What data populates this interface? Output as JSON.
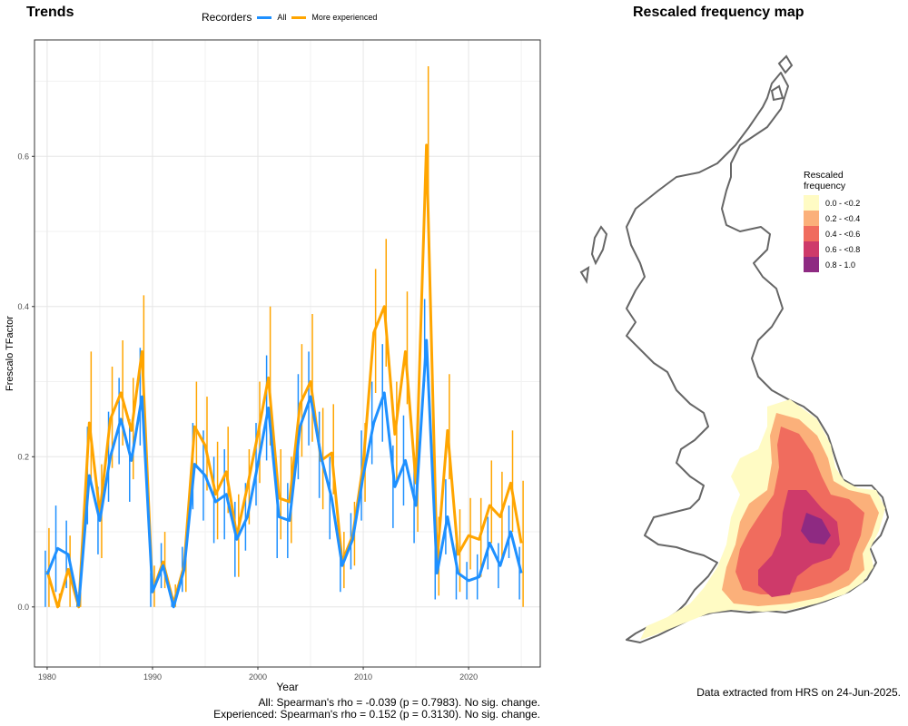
{
  "trends_panel": {
    "title": "Trends",
    "legend_title": "Recorders",
    "legend_entries": [
      {
        "label": "All",
        "color": "#1E90FF"
      },
      {
        "label": "More experienced",
        "color": "#FFA500"
      }
    ],
    "stats_all": "All: Spearman's rho = -0.039 (p = 0.7983). No sig. change.",
    "stats_experienced": "Experienced: Spearman's rho = 0.152 (p = 0.3130). No sig. change."
  },
  "map_panel": {
    "title": "Rescaled frequency map",
    "legend_title_line1": "Rescaled",
    "legend_title_line2": "frequency",
    "legend": [
      {
        "label": "0.0 - <0.2",
        "color": "#FFFBC4"
      },
      {
        "label": "0.2 - <0.4",
        "color": "#FBB07A"
      },
      {
        "label": "0.4 - <0.6",
        "color": "#F06C5E"
      },
      {
        "label": "0.6 - <0.8",
        "color": "#CE3A6A"
      },
      {
        "label": "0.8 - 1.0",
        "color": "#8E2A82"
      }
    ],
    "extract_note": "Data extracted from HRS on 24-Jun-2025."
  },
  "chart_data": {
    "type": "line",
    "xlabel": "Year",
    "ylabel": "Frescalo TFactor",
    "xlim": [
      1978.8,
      2026.8
    ],
    "ylim": [
      -0.08,
      0.755
    ],
    "xticks": [
      1980,
      1990,
      2000,
      2010,
      2020
    ],
    "yticks": [
      0.0,
      0.2,
      0.4,
      0.6
    ],
    "ytick_labels": [
      "0.0",
      "0.2",
      "0.4",
      "0.6"
    ],
    "grid": true,
    "legend_position": "top",
    "x": [
      1980,
      1981,
      1982,
      1983,
      1984,
      1985,
      1986,
      1987,
      1988,
      1989,
      1990,
      1991,
      1992,
      1993,
      1994,
      1995,
      1996,
      1997,
      1998,
      1999,
      2000,
      2001,
      2002,
      2003,
      2004,
      2005,
      2006,
      2007,
      2008,
      2009,
      2010,
      2011,
      2012,
      2013,
      2014,
      2015,
      2016,
      2017,
      2018,
      2019,
      2020,
      2021,
      2022,
      2023,
      2024,
      2025
    ],
    "series": [
      {
        "name": "More experienced",
        "color": "#FFA500",
        "values": [
          0.048,
          0.0,
          0.05,
          0.0,
          0.245,
          0.125,
          0.25,
          0.285,
          0.235,
          0.34,
          0.02,
          0.06,
          0.005,
          0.055,
          0.24,
          0.215,
          0.15,
          0.18,
          0.095,
          0.16,
          0.23,
          0.305,
          0.145,
          0.14,
          0.27,
          0.3,
          0.195,
          0.205,
          0.06,
          0.095,
          0.19,
          0.365,
          0.4,
          0.23,
          0.34,
          0.165,
          0.615,
          0.06,
          0.235,
          0.07,
          0.095,
          0.09,
          0.135,
          0.12,
          0.165,
          0.085
        ],
        "upper": [
          0.105,
          0.018,
          0.095,
          0.05,
          0.34,
          0.19,
          0.32,
          0.355,
          0.305,
          0.415,
          0.055,
          0.1,
          0.03,
          0.1,
          0.3,
          0.28,
          0.22,
          0.24,
          0.15,
          0.21,
          0.3,
          0.4,
          0.21,
          0.2,
          0.35,
          0.39,
          0.265,
          0.27,
          0.1,
          0.14,
          0.245,
          0.45,
          0.49,
          0.3,
          0.42,
          0.24,
          0.72,
          0.12,
          0.31,
          0.13,
          0.145,
          0.145,
          0.195,
          0.18,
          0.235,
          0.168
        ],
        "lower": [
          0.0,
          0.0,
          0.0,
          0.0,
          0.165,
          0.065,
          0.185,
          0.215,
          0.17,
          0.265,
          0.0,
          0.025,
          0.0,
          0.02,
          0.185,
          0.155,
          0.09,
          0.125,
          0.04,
          0.11,
          0.165,
          0.215,
          0.09,
          0.085,
          0.2,
          0.22,
          0.13,
          0.15,
          0.025,
          0.055,
          0.14,
          0.285,
          0.32,
          0.165,
          0.27,
          0.1,
          0.5,
          0.015,
          0.17,
          0.02,
          0.05,
          0.04,
          0.085,
          0.065,
          0.1,
          0.0
        ]
      },
      {
        "name": "All",
        "color": "#1E90FF",
        "values": [
          0.043,
          0.078,
          0.07,
          0.002,
          0.175,
          0.115,
          0.2,
          0.25,
          0.195,
          0.28,
          0.02,
          0.055,
          0.0,
          0.05,
          0.19,
          0.175,
          0.14,
          0.15,
          0.09,
          0.12,
          0.19,
          0.265,
          0.12,
          0.115,
          0.24,
          0.28,
          0.2,
          0.145,
          0.055,
          0.09,
          0.175,
          0.245,
          0.285,
          0.16,
          0.195,
          0.135,
          0.355,
          0.045,
          0.12,
          0.045,
          0.035,
          0.04,
          0.085,
          0.055,
          0.1,
          0.045
        ],
        "upper": [
          0.075,
          0.135,
          0.115,
          0.02,
          0.24,
          0.16,
          0.26,
          0.305,
          0.25,
          0.345,
          0.045,
          0.085,
          0.015,
          0.08,
          0.245,
          0.235,
          0.2,
          0.21,
          0.14,
          0.165,
          0.245,
          0.335,
          0.175,
          0.165,
          0.31,
          0.34,
          0.26,
          0.2,
          0.09,
          0.125,
          0.235,
          0.3,
          0.35,
          0.215,
          0.255,
          0.19,
          0.41,
          0.08,
          0.17,
          0.085,
          0.06,
          0.07,
          0.12,
          0.085,
          0.135,
          0.08
        ],
        "lower": [
          0.0,
          0.02,
          0.025,
          0.0,
          0.11,
          0.07,
          0.14,
          0.19,
          0.14,
          0.215,
          0.0,
          0.025,
          0.0,
          0.02,
          0.13,
          0.115,
          0.085,
          0.09,
          0.04,
          0.075,
          0.135,
          0.195,
          0.065,
          0.065,
          0.17,
          0.215,
          0.145,
          0.09,
          0.02,
          0.05,
          0.115,
          0.19,
          0.22,
          0.105,
          0.135,
          0.085,
          0.3,
          0.01,
          0.07,
          0.01,
          0.01,
          0.01,
          0.05,
          0.025,
          0.065,
          0.01
        ]
      }
    ]
  }
}
